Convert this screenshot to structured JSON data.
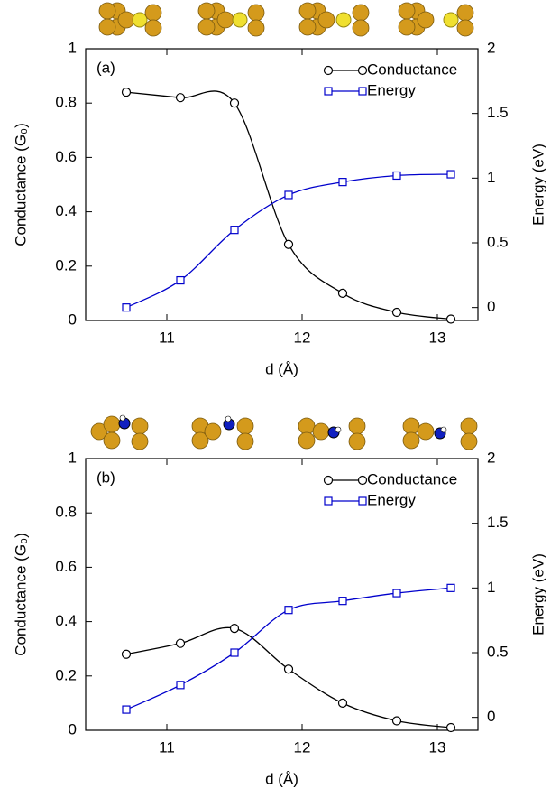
{
  "chart_data": [
    {
      "type": "line",
      "label": "(a)",
      "xlabel": "d (Å)",
      "ylabel": "Conductance (G₀)",
      "y2label": "Energy (eV)",
      "x": [
        10.7,
        11.1,
        11.5,
        11.9,
        12.3,
        12.7,
        13.1
      ],
      "series": [
        {
          "name": "Conductance",
          "color": "#000000",
          "marker": "circle",
          "values": [
            0.84,
            0.82,
            0.8,
            0.28,
            0.1,
            0.03,
            0.005
          ]
        },
        {
          "name": "Energy",
          "color": "#0000cc",
          "marker": "square",
          "axis": "y2",
          "values": [
            0.0,
            0.21,
            0.6,
            0.87,
            0.97,
            1.02,
            1.03
          ]
        }
      ],
      "xlim": [
        10.4,
        13.3
      ],
      "xticks": [
        11,
        12,
        13
      ],
      "ylim": [
        0,
        1
      ],
      "yticks": [
        0,
        0.2,
        0.4,
        0.6,
        0.8,
        1
      ],
      "y2lim": [
        -0.1,
        2
      ],
      "y2ticks": [
        0,
        0.5,
        1,
        1.5,
        2
      ],
      "legend": "upper right"
    },
    {
      "type": "line",
      "label": "(b)",
      "xlabel": "d (Å)",
      "ylabel": "Conductance (G₀)",
      "y2label": "Energy (eV)",
      "x": [
        10.7,
        11.1,
        11.5,
        11.9,
        12.3,
        12.7,
        13.1
      ],
      "series": [
        {
          "name": "Conductance",
          "color": "#000000",
          "marker": "circle",
          "values": [
            0.28,
            0.32,
            0.375,
            0.225,
            0.1,
            0.035,
            0.01
          ]
        },
        {
          "name": "Energy",
          "color": "#0000cc",
          "marker": "square",
          "axis": "y2",
          "values": [
            0.06,
            0.25,
            0.5,
            0.83,
            0.9,
            0.96,
            1.0
          ]
        }
      ],
      "xlim": [
        10.4,
        13.3
      ],
      "xticks": [
        11,
        12,
        13
      ],
      "ylim": [
        0,
        1
      ],
      "yticks": [
        0,
        0.2,
        0.4,
        0.6,
        0.8,
        1
      ],
      "y2lim": [
        -0.1,
        2
      ],
      "y2ticks": [
        0,
        0.5,
        1,
        1.5,
        2
      ],
      "legend": "upper right"
    }
  ]
}
